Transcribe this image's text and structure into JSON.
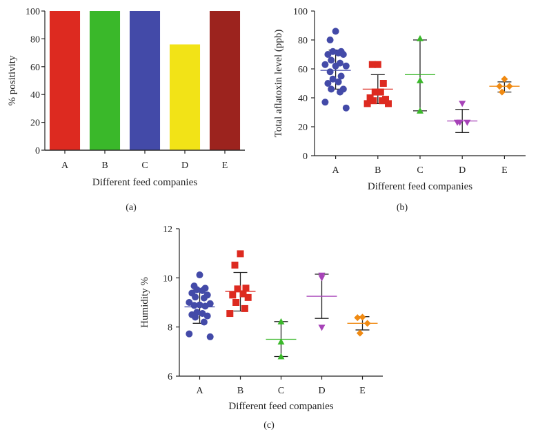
{
  "panels": [
    {
      "label": "(a)",
      "chart_data": {
        "type": "bar",
        "categories": [
          "A",
          "B",
          "C",
          "D",
          "E"
        ],
        "values": [
          100,
          100,
          100,
          76,
          100
        ],
        "colors": [
          "#dd2a20",
          "#3ab82a",
          "#434aa8",
          "#f2e317",
          "#9c231e"
        ],
        "xlabel": "Different feed companies",
        "ylabel": "% positivity",
        "ylim": [
          0,
          100
        ],
        "yticks": [
          0,
          20,
          40,
          60,
          80,
          100
        ]
      }
    },
    {
      "label": "(b)",
      "chart_data": {
        "type": "scatter",
        "categories": [
          "A",
          "B",
          "C",
          "D",
          "E"
        ],
        "xlabel": "Different feed companies",
        "ylabel": "Total aflatoxin level (ppb)",
        "ylim": [
          0,
          100
        ],
        "yticks": [
          0,
          20,
          40,
          60,
          80,
          100
        ],
        "series": [
          {
            "category": "A",
            "color": "#434aa8",
            "marker": "circle",
            "mean": 59,
            "err_low": 46,
            "err_high": 73,
            "points": [
              86,
              80,
              72,
              72,
              71,
              70,
              70,
              66,
              64,
              63,
              62,
              62,
              58,
              55,
              53,
              51,
              50,
              46,
              46,
              44,
              37,
              33
            ]
          },
          {
            "category": "B",
            "color": "#dd2a20",
            "marker": "square",
            "mean": 46,
            "err_low": 36,
            "err_high": 56,
            "points": [
              63,
              63,
              50,
              44,
              44,
              40,
              39,
              38,
              38,
              36,
              36
            ]
          },
          {
            "category": "C",
            "color": "#3ab82a",
            "marker": "triangle-up",
            "mean": 56,
            "err_low": 31,
            "err_high": 80,
            "points": [
              81,
              52,
              31
            ]
          },
          {
            "category": "D",
            "color": "#a743b8",
            "marker": "triangle-down",
            "mean": 24,
            "err_low": 16,
            "err_high": 32,
            "points": [
              36,
              23,
              23,
              23
            ]
          },
          {
            "category": "E",
            "color": "#f08a12",
            "marker": "diamond",
            "mean": 48,
            "err_low": 44,
            "err_high": 51,
            "points": [
              53,
              48,
              48,
              44
            ]
          }
        ]
      }
    },
    {
      "label": "(c)",
      "chart_data": {
        "type": "scatter",
        "categories": [
          "A",
          "B",
          "C",
          "D",
          "E"
        ],
        "xlabel": "Different feed companies",
        "ylabel": "Humidity %",
        "ylim": [
          6,
          12
        ],
        "yticks": [
          6,
          8,
          10,
          12
        ],
        "series": [
          {
            "category": "A",
            "color": "#434aa8",
            "marker": "circle",
            "mean": 8.82,
            "err_low": 8.15,
            "err_high": 9.5,
            "points": [
              10.12,
              9.67,
              9.58,
              9.52,
              9.48,
              9.38,
              9.3,
              9.22,
              9.18,
              9.0,
              8.95,
              8.9,
              8.88,
              8.85,
              8.6,
              8.55,
              8.5,
              8.45,
              8.4,
              8.2,
              7.72,
              7.6
            ]
          },
          {
            "category": "B",
            "color": "#dd2a20",
            "marker": "square",
            "mean": 9.45,
            "err_low": 8.65,
            "err_high": 10.22,
            "points": [
              10.98,
              10.52,
              9.58,
              9.55,
              9.35,
              9.3,
              9.2,
              9.0,
              8.75,
              8.55
            ]
          },
          {
            "category": "C",
            "color": "#3ab82a",
            "marker": "triangle-up",
            "mean": 7.5,
            "err_low": 6.8,
            "err_high": 8.22,
            "points": [
              8.22,
              7.4,
              6.8
            ]
          },
          {
            "category": "D",
            "color": "#a743b8",
            "marker": "triangle-down",
            "mean": 9.25,
            "err_low": 8.35,
            "err_high": 10.15,
            "points": [
              10.1,
              10.0,
              7.98
            ]
          },
          {
            "category": "E",
            "color": "#f08a12",
            "marker": "diamond",
            "mean": 8.15,
            "err_low": 7.88,
            "err_high": 8.42,
            "points": [
              8.4,
              8.38,
              8.15,
              7.75
            ]
          }
        ]
      }
    }
  ]
}
